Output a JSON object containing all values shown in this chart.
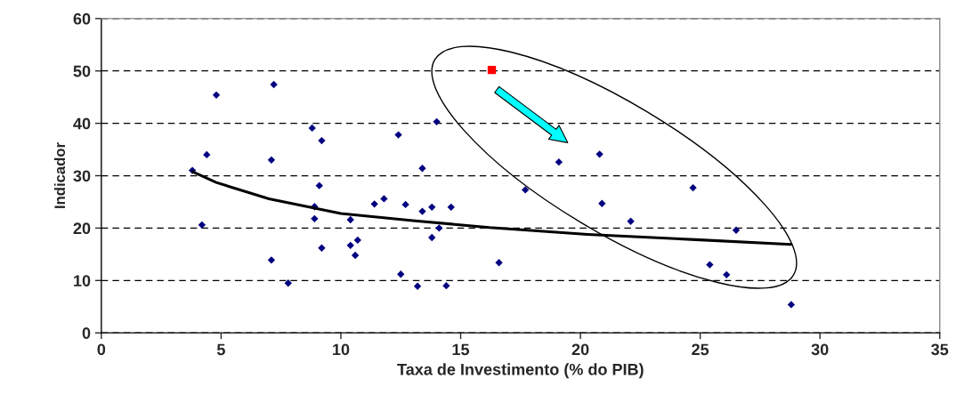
{
  "chart_data": {
    "type": "scatter",
    "xlabel": "Taxa de Investimento (% do PIB)",
    "ylabel": "Indicador",
    "xlim": [
      0,
      35
    ],
    "xticks": [
      0,
      5,
      10,
      15,
      20,
      25,
      30,
      35
    ],
    "ylim": [
      0,
      60
    ],
    "yticks": [
      0,
      10,
      20,
      30,
      40,
      50,
      60
    ],
    "grid": "y",
    "series": [
      {
        "marker": "diamond",
        "color": "#000080",
        "x": [
          3.8,
          4.4,
          4.2,
          4.8,
          7.2,
          7.1,
          7.1,
          7.8,
          8.8,
          9.2,
          9.1,
          8.9,
          8.9,
          9.2,
          10.4,
          10.4,
          10.7,
          10.6,
          11.4,
          11.8,
          12.4,
          12.7,
          13.4,
          13.4,
          13.8,
          14.0,
          14.1,
          13.8,
          12.5,
          13.2,
          14.4,
          14.6,
          16.6,
          17.7,
          19.1,
          20.8,
          20.9,
          22.1,
          24.7,
          25.4,
          26.1,
          26.5,
          28.8
        ],
        "values": [
          31.0,
          34.0,
          20.6,
          45.4,
          47.4,
          33.0,
          13.9,
          9.5,
          39.1,
          36.7,
          28.1,
          24.1,
          21.8,
          16.2,
          21.6,
          16.7,
          17.7,
          14.8,
          24.6,
          25.6,
          37.8,
          24.5,
          31.4,
          23.2,
          24.0,
          40.3,
          20.0,
          18.2,
          11.2,
          8.9,
          9.0,
          24.0,
          13.4,
          27.3,
          32.6,
          34.1,
          24.7,
          21.3,
          27.7,
          13.0,
          11.1,
          19.6,
          5.4
        ]
      },
      {
        "marker": "square",
        "color": "#ff0000",
        "x": [
          16.3
        ],
        "values": [
          50.2
        ]
      },
      {
        "type": "line",
        "marker": "none",
        "line_style": "solid",
        "color": "#000000",
        "x": [
          3.8,
          4.8,
          7.0,
          10.0,
          13.1,
          16.2,
          20.3,
          24.8,
          28.8
        ],
        "values": [
          30.8,
          28.7,
          25.6,
          22.8,
          21.4,
          20.1,
          18.8,
          17.8,
          16.9
        ]
      }
    ]
  }
}
